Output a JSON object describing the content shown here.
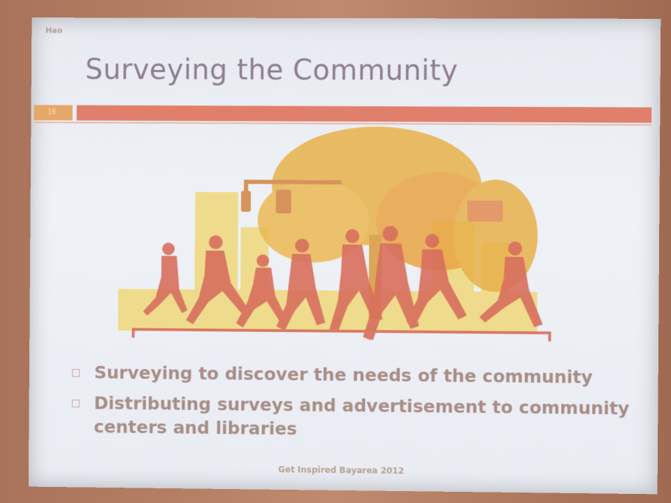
{
  "slide": {
    "author": "Hao",
    "title": "Surveying the Community",
    "slide_number": "16",
    "bullets": [
      "Surveying to discover the needs of the community",
      "Distributing surveys and advertisement to community centers and libraries"
    ],
    "footer": "Get Inspired Bayarea 2012"
  },
  "colors": {
    "title": "#8e7e92",
    "title_bar": "#e0806c",
    "number_box": "#e5a868",
    "runners": "#d86f5e",
    "tree": "#e8b14a",
    "buildings": "#efd97a"
  },
  "icons": [
    "runners-illustration",
    "tree-icon",
    "traffic-light-icon",
    "building-icon"
  ]
}
